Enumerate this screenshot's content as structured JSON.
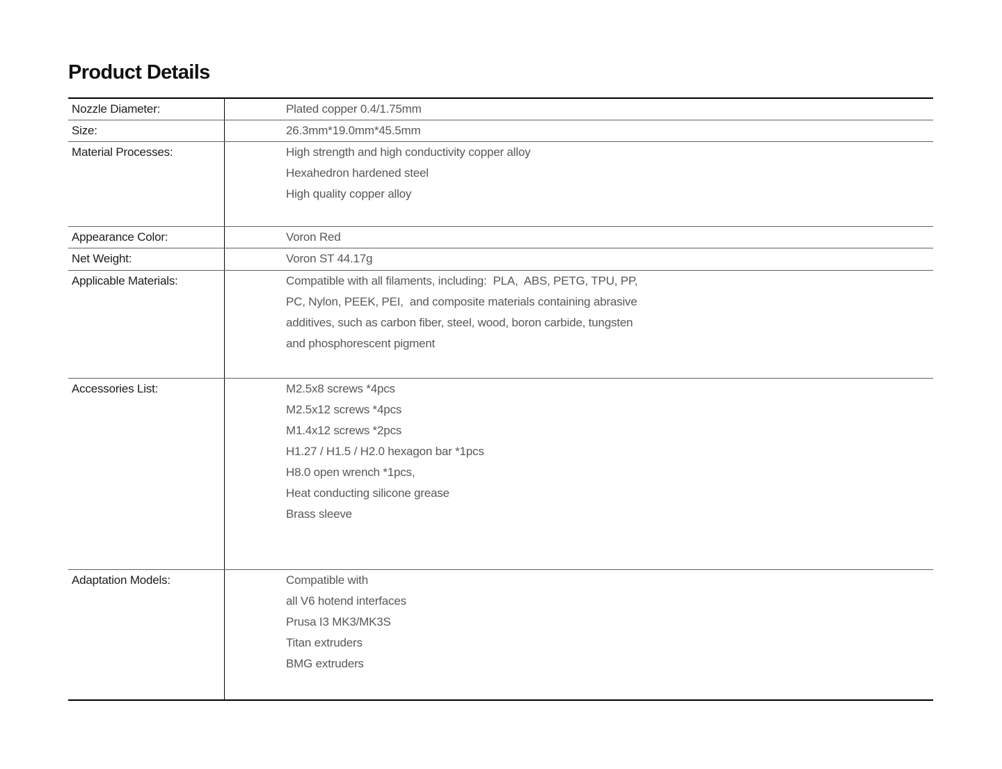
{
  "section_title": "Product Details",
  "table": {
    "rows": [
      {
        "label": "Nozzle Diameter:",
        "values": [
          "Plated copper 0.4/1.75mm"
        ]
      },
      {
        "label": "Size:",
        "values": [
          "26.3mm*19.0mm*45.5mm"
        ]
      },
      {
        "label": "Material Processes:",
        "values": [
          "High strength and high conductivity copper alloy",
          "Hexahedron hardened steel",
          "High quality copper alloy"
        ]
      },
      {
        "label": "Appearance Color:",
        "values": [
          "Voron Red"
        ]
      },
      {
        "label": "Net Weight:",
        "values": [
          "Voron ST 44.17g"
        ]
      },
      {
        "label": "Applicable Materials:",
        "values": [
          "Compatible with all filaments, including:  PLA,  ABS, PETG, TPU, PP,",
          "PC, Nylon, PEEK, PEI,  and composite materials containing abrasive",
          "additives, such as carbon fiber, steel, wood, boron carbide, tungsten",
          "and phosphorescent pigment"
        ]
      },
      {
        "label": "Accessories List:",
        "values": [
          "M2.5x8 screws *4pcs",
          "M2.5x12 screws *4pcs",
          "M1.4x12 screws *2pcs",
          "H1.27 / H1.5 / H2.0 hexagon bar *1pcs",
          "H8.0 open wrench *1pcs,",
          "Heat conducting silicone grease",
          "Brass sleeve"
        ]
      },
      {
        "label": "Adaptation Models:",
        "values": [
          "Compatible with",
          "all V6 hotend interfaces",
          "Prusa I3 MK3/MK3S",
          "Titan extruders",
          "BMG extruders"
        ]
      }
    ]
  },
  "colors": {
    "background": "#ffffff",
    "title_text": "#111111",
    "label_text": "#1d1d1d",
    "value_text": "#58585a",
    "border_strong": "#000000",
    "border_inner": "#5f5f5f"
  }
}
